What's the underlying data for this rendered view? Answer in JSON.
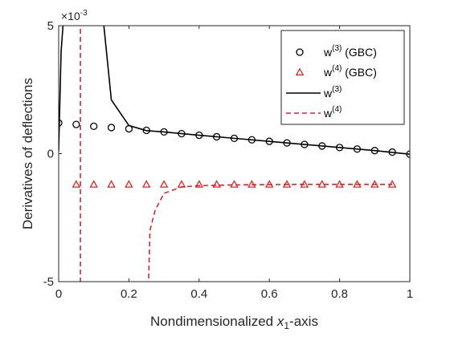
{
  "chart_data": {
    "type": "line",
    "xlabel": {
      "base": "Nondimensionalized ",
      "var": "x",
      "sub": "1",
      "suffix": "-axis"
    },
    "ylabel": "Derivatives of deflections",
    "exponent_label": {
      "prefix": "×10",
      "power": "-3"
    },
    "xlim": [
      0,
      1
    ],
    "ylim": [
      -5,
      5
    ],
    "x_ticks": [
      0,
      0.2,
      0.4,
      0.6,
      0.8,
      1
    ],
    "x_tick_labels": [
      "0",
      "0.2",
      "0.4",
      "0.6",
      "0.8",
      "1"
    ],
    "y_ticks": [
      -5,
      0,
      5
    ],
    "y_tick_labels": [
      "-5",
      "0",
      "5"
    ],
    "grid": false,
    "legend_position": "top-right",
    "series": [
      {
        "name": "w(3) (GBC)",
        "label_base": "w",
        "label_sup": "(3)",
        "label_suffix": " (GBC)",
        "style": "markers",
        "marker": "circle",
        "color": "#000000",
        "x": [
          0,
          0.05,
          0.1,
          0.15,
          0.2,
          0.25,
          0.3,
          0.35,
          0.4,
          0.45,
          0.5,
          0.55,
          0.6,
          0.65,
          0.7,
          0.75,
          0.8,
          0.85,
          0.9,
          0.95,
          1.0
        ],
        "y": [
          1.2,
          1.14,
          1.07,
          1.02,
          0.97,
          0.91,
          0.85,
          0.78,
          0.72,
          0.66,
          0.6,
          0.54,
          0.48,
          0.42,
          0.36,
          0.3,
          0.24,
          0.18,
          0.12,
          0.06,
          -0.02
        ]
      },
      {
        "name": "w(4) (GBC)",
        "label_base": "w",
        "label_sup": "(4)",
        "label_suffix": " (GBC)",
        "style": "markers",
        "marker": "triangle",
        "color": "#d62728",
        "x": [
          0.05,
          0.1,
          0.15,
          0.2,
          0.25,
          0.3,
          0.35,
          0.4,
          0.45,
          0.5,
          0.55,
          0.6,
          0.65,
          0.7,
          0.75,
          0.8,
          0.85,
          0.9,
          0.95
        ],
        "y": [
          -1.2,
          -1.2,
          -1.2,
          -1.2,
          -1.2,
          -1.2,
          -1.2,
          -1.2,
          -1.2,
          -1.2,
          -1.2,
          -1.2,
          -1.2,
          -1.2,
          -1.2,
          -1.2,
          -1.2,
          -1.2,
          -1.2
        ]
      },
      {
        "name": "w(3)",
        "label_base": "w",
        "label_sup": "(3)",
        "label_suffix": "",
        "style": "solid",
        "color": "#000000",
        "x": [
          0,
          0.007,
          0.015,
          0.05,
          0.1,
          0.125,
          0.15,
          0.2,
          0.25,
          0.3,
          0.4,
          0.5,
          0.6,
          0.7,
          0.8,
          0.9,
          1.0
        ],
        "y": [
          0.1,
          4.0,
          5.5,
          8,
          8,
          5.5,
          2.1,
          1.1,
          0.9,
          0.85,
          0.72,
          0.6,
          0.48,
          0.36,
          0.24,
          0.12,
          -0.02
        ]
      },
      {
        "name": "w(4)",
        "label_base": "w",
        "label_sup": "(4)",
        "label_suffix": "",
        "style": "dashed",
        "color": "#d62728",
        "x": [
          0.255,
          0.26,
          0.275,
          0.3,
          0.35,
          0.4,
          0.5,
          0.6,
          0.7,
          0.8,
          0.9,
          0.95
        ],
        "y": [
          -5.5,
          -3.0,
          -2.2,
          -1.55,
          -1.3,
          -1.25,
          -1.22,
          -1.21,
          -1.2,
          -1.2,
          -1.2,
          -1.2
        ],
        "extra_segment": {
          "x": [
            0.062,
            0.062
          ],
          "y": [
            5.5,
            -5.5
          ]
        }
      }
    ]
  }
}
